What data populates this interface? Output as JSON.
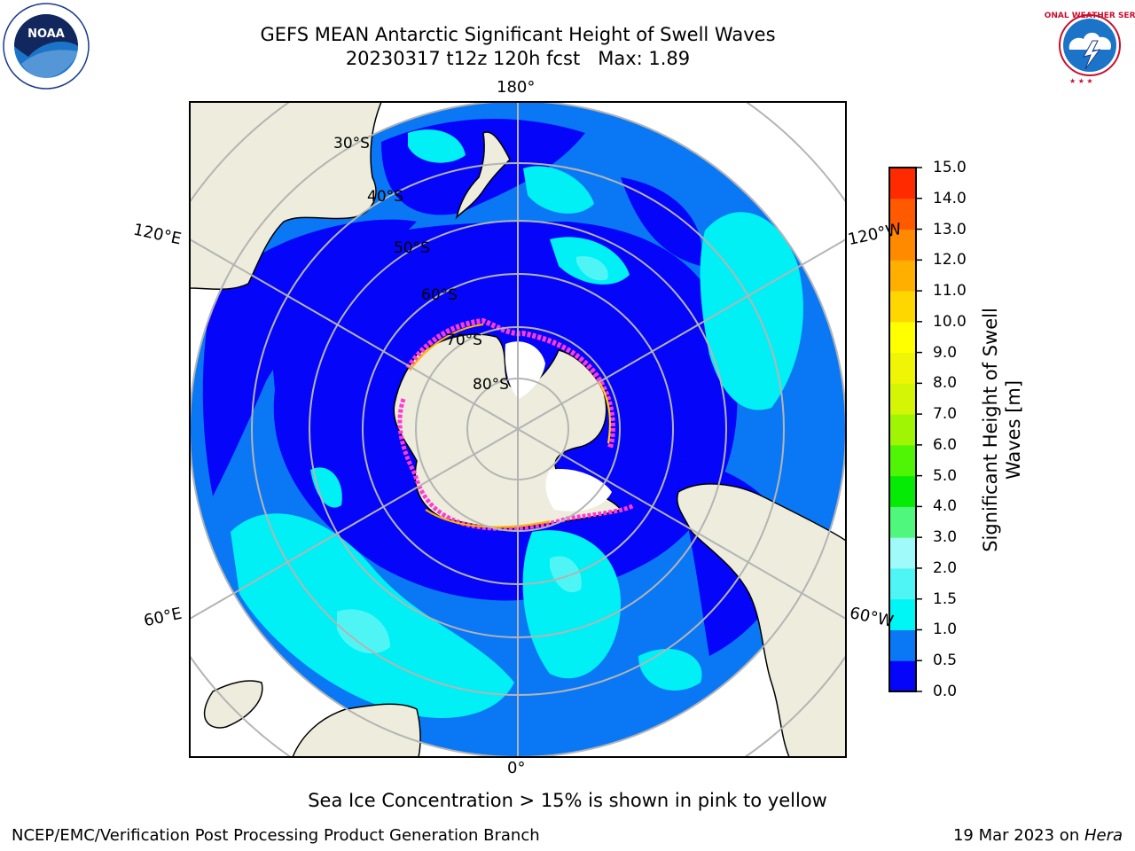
{
  "title": {
    "line1": "GEFS MEAN Antarctic Significant Height of Swell Waves",
    "line2": "20230317 t12z 120h fcst   Max: 1.89"
  },
  "logos": {
    "left": "NOAA",
    "right": "NATIONAL WEATHER SERVICE"
  },
  "map": {
    "projection": "south-polar-stereographic",
    "longitude_labels": {
      "top": "180°",
      "bottom": "0°",
      "upper_left": "120°E",
      "lower_left": "60°E",
      "upper_right": "120°W",
      "lower_right": "60°W"
    },
    "latitude_labels": [
      "30°S",
      "40°S",
      "50°S",
      "60°S",
      "70°S",
      "80°S"
    ],
    "colors": {
      "ocean_low": "#0a14f5",
      "ocean_mid": "#0a7af5",
      "ocean_high": "#00f0f5",
      "ocean_higher": "#4ff5f5",
      "land": "#eeecdc",
      "ice_shelf": "#ffffff",
      "sea_ice_edge": "#ff3ad5",
      "grid": "#b4b4b4"
    }
  },
  "colorbar": {
    "label_line1": "Significant Height of Swell",
    "label_line2": "Waves [m]",
    "ticks": [
      "0.0",
      "0.5",
      "1.0",
      "1.5",
      "2.0",
      "3.0",
      "4.0",
      "5.0",
      "6.0",
      "7.0",
      "8.0",
      "9.0",
      "10.0",
      "11.0",
      "12.0",
      "13.0",
      "14.0",
      "15.0"
    ],
    "colors": [
      "#0505fa",
      "#0a78f5",
      "#00f5f5",
      "#4ff5f5",
      "#a0fafa",
      "#4ff77d",
      "#05eb05",
      "#4ff505",
      "#a0f505",
      "#d4f505",
      "#f0f505",
      "#ffff00",
      "#ffd700",
      "#ffaf00",
      "#ff8a00",
      "#ff5a00",
      "#ff2a00"
    ]
  },
  "caption": "Sea Ice Concentration > 15% is shown in pink to yellow",
  "footer": {
    "left": "NCEP/EMC/Verification Post Processing Product Generation Branch",
    "right_prefix": "19 Mar 2023 on ",
    "right_host": "Hera"
  }
}
